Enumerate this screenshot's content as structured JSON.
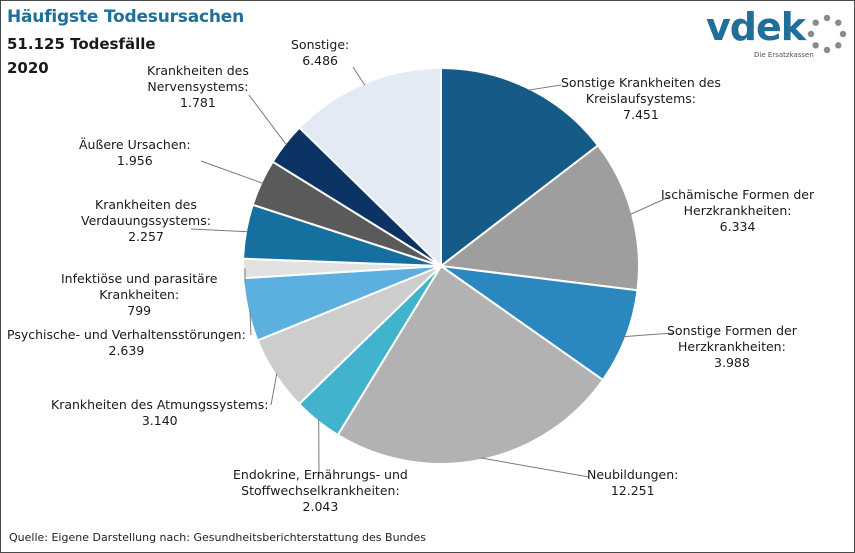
{
  "header": {
    "title": "Häufigste Todesursachen",
    "subtitle": "51.125 Todesfälle",
    "year": "2020"
  },
  "logo": {
    "name": "vdek",
    "tagline": "Die Ersatzkassen"
  },
  "source": "Quelle: Eigene Darstellung nach: Gesundheitsberichterstattung  des Bundes",
  "chart_data": {
    "type": "pie",
    "title": "Häufigste Todesursachen",
    "total": 51125,
    "unit": "Todesfälle",
    "year": "2020",
    "slices": [
      {
        "label_lines": [
          "Sonstige Krankheiten des",
          "Kreislaufsystems:"
        ],
        "value_text": "7.451",
        "value": 7451,
        "color": "#165a87"
      },
      {
        "label_lines": [
          "Ischämische Formen der",
          "Herzkrankheiten:"
        ],
        "value_text": "6.334",
        "value": 6334,
        "color": "#9e9e9e"
      },
      {
        "label_lines": [
          "Sonstige Formen der",
          "Herzkrankheiten:"
        ],
        "value_text": "3.988",
        "value": 3988,
        "color": "#2b88bf"
      },
      {
        "label_lines": [
          "Neubildungen:"
        ],
        "value_text": "12.251",
        "value": 12251,
        "color": "#b2b2b2"
      },
      {
        "label_lines": [
          "Endokrine, Ernährungs- und",
          "Stoffwechselkrankheiten:"
        ],
        "value_text": "2.043",
        "value": 2043,
        "color": "#42b3cc"
      },
      {
        "label_lines": [
          "Krankheiten des Atmungssystems:"
        ],
        "value_text": "3.140",
        "value": 3140,
        "color": "#cdcdcd"
      },
      {
        "label_lines": [
          "Psychische- und Verhaltensstörungen:"
        ],
        "value_text": "2.639",
        "value": 2639,
        "color": "#5cb0df"
      },
      {
        "label_lines": [
          "Infektiöse und parasitäre",
          "Krankheiten:"
        ],
        "value_text": "799",
        "value": 799,
        "color": "#e2e2e2"
      },
      {
        "label_lines": [
          "Krankheiten des",
          "Verdauungssystems:"
        ],
        "value_text": "2.257",
        "value": 2257,
        "color": "#16709f"
      },
      {
        "label_lines": [
          "Äußere Ursachen:"
        ],
        "value_text": "1.956",
        "value": 1956,
        "color": "#5a5a5a"
      },
      {
        "label_lines": [
          "Krankheiten des",
          "Nervensystems:"
        ],
        "value_text": "1.781",
        "value": 1781,
        "color": "#0b3364"
      },
      {
        "label_lines": [
          "Sonstige:"
        ],
        "value_text": "6.486",
        "value": 6486,
        "color": "#e3eaf3"
      }
    ]
  }
}
